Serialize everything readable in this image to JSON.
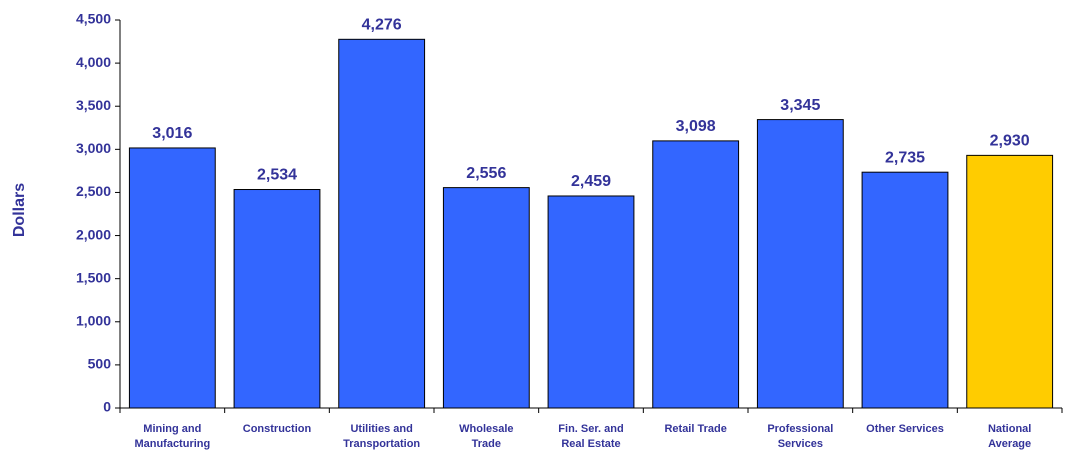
{
  "chart_data": {
    "type": "bar",
    "y_label": "Dollars",
    "categories": [
      "Mining and Manufacturing",
      "Construction",
      "Utilities and Transportation",
      "Wholesale Trade",
      "Fin. Ser. and Real Estate",
      "Retail Trade",
      "Professional Services",
      "Other Services",
      "National Average"
    ],
    "values": [
      3016,
      2534,
      4276,
      2556,
      2459,
      3098,
      3345,
      2735,
      2930
    ],
    "value_labels": [
      "3,016",
      "2,534",
      "4,276",
      "2,556",
      "2,459",
      "3,098",
      "3,345",
      "2,735",
      "2,930"
    ],
    "colors": [
      "#3366ff",
      "#3366ff",
      "#3366ff",
      "#3366ff",
      "#3366ff",
      "#3366ff",
      "#3366ff",
      "#3366ff",
      "#ffcc00"
    ],
    "ylim": [
      0,
      4500
    ],
    "yticks": [
      0,
      500,
      {
        "value": 1000,
        "label": "1,000"
      },
      {
        "value": 1500,
        "label": "1,500"
      },
      {
        "value": 2000,
        "label": "2,000"
      },
      {
        "value": 2500,
        "label": "2,500"
      },
      {
        "value": 3000,
        "label": "3,000"
      },
      {
        "value": 3500,
        "label": "3,500"
      },
      {
        "value": 4000,
        "label": "4,000"
      },
      {
        "value": 4500,
        "label": "4,500"
      }
    ],
    "grid": false
  }
}
